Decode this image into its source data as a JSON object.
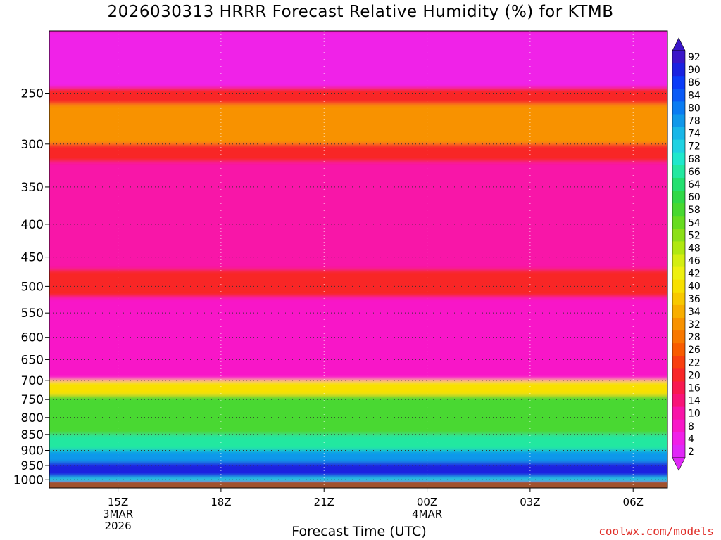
{
  "chart_data": {
    "type": "heatmap",
    "title": "2026030313 HRRR Forecast Relative Humidity (%) for KTMB",
    "xlabel": "Forecast Time (UTC)",
    "ylabel": "",
    "y_ticks": [
      250,
      300,
      350,
      400,
      450,
      500,
      550,
      600,
      650,
      700,
      750,
      800,
      850,
      900,
      950,
      1000
    ],
    "y_scale": "log-pressure (reversed)",
    "ylim": [
      1030,
      200
    ],
    "x_ticks": [
      {
        "label": "15Z",
        "sub": "3MAR",
        "sub2": "2026"
      },
      {
        "label": "18Z",
        "sub": "",
        "sub2": ""
      },
      {
        "label": "21Z",
        "sub": "",
        "sub2": ""
      },
      {
        "label": "00Z",
        "sub": "4MAR",
        "sub2": ""
      },
      {
        "label": "03Z",
        "sub": "",
        "sub2": ""
      },
      {
        "label": "06Z",
        "sub": "",
        "sub2": ""
      }
    ],
    "x_range_hours": [
      13,
      31
    ],
    "x_tick_hours": [
      15,
      18,
      21,
      24,
      27,
      30
    ],
    "grid": true,
    "colorbar": {
      "labels": [
        92,
        90,
        86,
        84,
        80,
        78,
        74,
        72,
        68,
        66,
        64,
        60,
        58,
        54,
        52,
        48,
        46,
        42,
        40,
        36,
        34,
        32,
        28,
        26,
        22,
        20,
        16,
        14,
        10,
        8,
        4,
        2
      ],
      "colors": [
        "#3a16c8",
        "#1a22e0",
        "#0a3cf8",
        "#0a5af6",
        "#0a7cf2",
        "#1098ea",
        "#18b6e8",
        "#20d2e2",
        "#20e8cc",
        "#24e8a0",
        "#24e070",
        "#30d848",
        "#48d830",
        "#68dc20",
        "#8ce018",
        "#b0e810",
        "#d4ee10",
        "#eef010",
        "#f8e000",
        "#f8c800",
        "#f8ae00",
        "#f89200",
        "#f87800",
        "#f85c00",
        "#f84010",
        "#f82828",
        "#f81a50",
        "#f81478",
        "#f814a8",
        "#f818c8",
        "#f020e8",
        "#e028f8"
      ]
    },
    "layers_by_pressure": [
      {
        "from_hPa": 200,
        "to_hPa": 245,
        "rh": 4
      },
      {
        "from_hPa": 245,
        "to_hPa": 260,
        "rh": 20
      },
      {
        "from_hPa": 260,
        "to_hPa": 300,
        "rh": 30
      },
      {
        "from_hPa": 300,
        "to_hPa": 320,
        "rh": 20
      },
      {
        "from_hPa": 320,
        "to_hPa": 470,
        "rh": 10
      },
      {
        "from_hPa": 470,
        "to_hPa": 520,
        "rh": 20
      },
      {
        "from_hPa": 520,
        "to_hPa": 700,
        "rh": 8
      },
      {
        "from_hPa": 700,
        "to_hPa": 740,
        "rh": 40
      },
      {
        "from_hPa": 740,
        "to_hPa": 850,
        "rh": 56
      },
      {
        "from_hPa": 850,
        "to_hPa": 900,
        "rh": 66
      },
      {
        "from_hPa": 900,
        "to_hPa": 940,
        "rh": 78
      },
      {
        "from_hPa": 940,
        "to_hPa": 990,
        "rh": 88
      },
      {
        "from_hPa": 990,
        "to_hPa": 1010,
        "rh": 70
      }
    ],
    "annotations": []
  },
  "credit": "coolwx.com/models",
  "ground_color": "#a0522d"
}
